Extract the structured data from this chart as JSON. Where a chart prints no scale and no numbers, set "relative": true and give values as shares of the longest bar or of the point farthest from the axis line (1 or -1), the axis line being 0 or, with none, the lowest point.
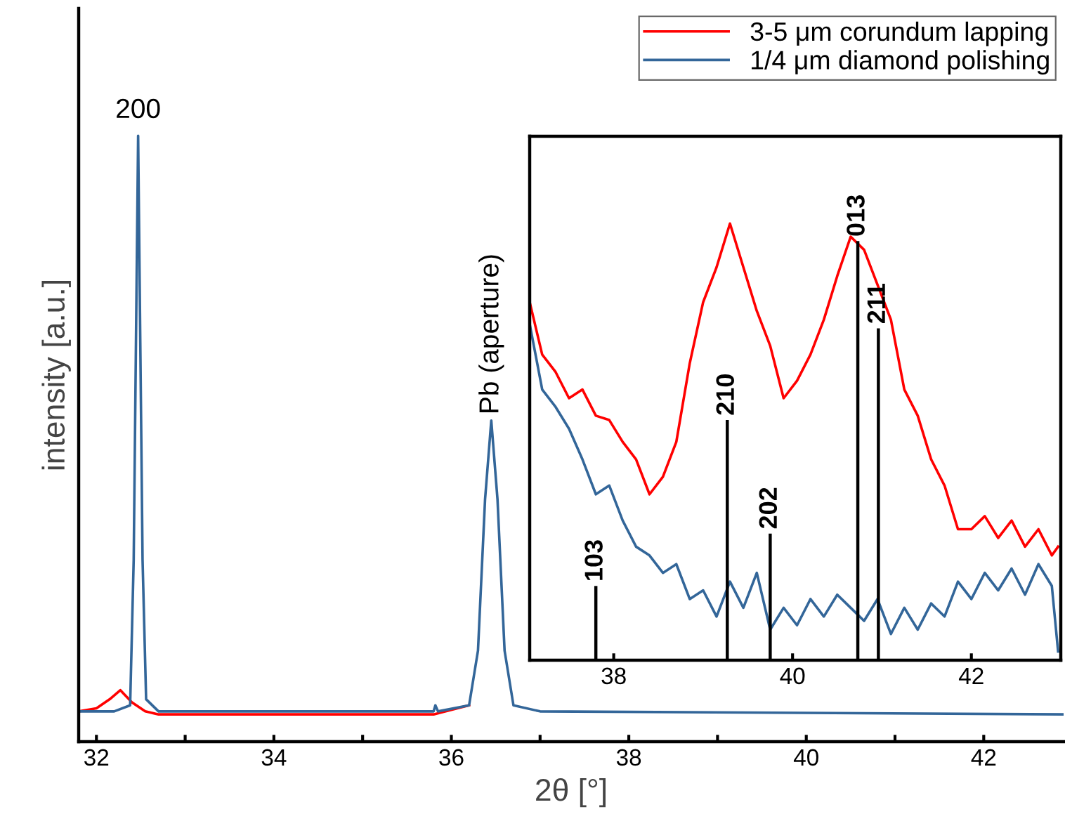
{
  "chart_data": [
    {
      "type": "line",
      "relative": true,
      "xlabel": "2θ [°]",
      "ylabel": "intensity [a.u.]",
      "xlim": [
        31.8,
        42.9
      ],
      "xticks": [
        32,
        {
          "value": 33,
          "label": null
        },
        34,
        {
          "value": 35,
          "label": null
        },
        36,
        {
          "value": 37,
          "label": null
        },
        38,
        {
          "value": 39,
          "label": null
        },
        40,
        {
          "value": 41,
          "label": null
        },
        42
      ],
      "legend": "top right",
      "series": [
        {
          "name": "3-5 μm corundum lapping",
          "color": "#ff0000",
          "x": [
            31.8,
            32.0,
            32.15,
            32.27,
            32.4,
            32.55,
            32.7,
            35.8,
            36.2
          ],
          "values": [
            0.05,
            0.055,
            0.07,
            0.085,
            0.065,
            0.05,
            0.045,
            0.045,
            0.06
          ]
        },
        {
          "name": "1/4 μm diamond polishing",
          "color": "#336699",
          "x": [
            31.8,
            32.2,
            32.38,
            32.42,
            32.47,
            32.52,
            32.56,
            32.7,
            35.8,
            35.82,
            35.85,
            36.2,
            36.3,
            36.38,
            36.45,
            36.52,
            36.6,
            36.7,
            37.0,
            42.9
          ],
          "values": [
            0.05,
            0.05,
            0.06,
            0.3,
            1.0,
            0.3,
            0.07,
            0.05,
            0.05,
            0.06,
            0.05,
            0.06,
            0.15,
            0.4,
            0.53,
            0.4,
            0.15,
            0.06,
            0.05,
            0.045
          ]
        }
      ],
      "annotations": [
        {
          "text": "200",
          "x": 32.47,
          "y": 1.0
        },
        {
          "text": "Pb (aperture)",
          "x": 36.45,
          "y": 0.53
        }
      ]
    },
    {
      "type": "line",
      "relative": true,
      "xlim": [
        37.06,
        43.0
      ],
      "xticks": [
        38,
        40,
        42
      ],
      "series": [
        {
          "color": "#ff0000",
          "x": [
            37.06,
            37.2,
            37.35,
            37.5,
            37.65,
            37.8,
            37.95,
            38.1,
            38.25,
            38.4,
            38.55,
            38.7,
            38.85,
            39.0,
            39.15,
            39.3,
            39.45,
            39.6,
            39.75,
            39.9,
            40.05,
            40.2,
            40.35,
            40.5,
            40.65,
            40.8,
            40.95,
            41.1,
            41.25,
            41.4,
            41.55,
            41.7,
            41.85,
            42.0,
            42.15,
            42.3,
            42.45,
            42.6,
            42.75,
            42.9,
            42.97
          ],
          "values": [
            0.82,
            0.7,
            0.66,
            0.6,
            0.62,
            0.56,
            0.55,
            0.5,
            0.46,
            0.38,
            0.42,
            0.5,
            0.68,
            0.82,
            0.9,
            1.0,
            0.9,
            0.8,
            0.72,
            0.6,
            0.64,
            0.7,
            0.78,
            0.88,
            0.97,
            0.94,
            0.86,
            0.78,
            0.62,
            0.56,
            0.46,
            0.4,
            0.3,
            0.3,
            0.33,
            0.28,
            0.32,
            0.26,
            0.3,
            0.24,
            0.26
          ]
        },
        {
          "color": "#336699",
          "x": [
            37.06,
            37.2,
            37.35,
            37.5,
            37.65,
            37.8,
            37.95,
            38.1,
            38.25,
            38.4,
            38.55,
            38.7,
            38.85,
            39.0,
            39.15,
            39.3,
            39.45,
            39.6,
            39.75,
            39.9,
            40.05,
            40.2,
            40.35,
            40.5,
            40.65,
            40.8,
            40.95,
            41.1,
            41.25,
            41.4,
            41.55,
            41.7,
            41.85,
            42.0,
            42.15,
            42.3,
            42.45,
            42.6,
            42.75,
            42.9,
            42.97
          ],
          "values": [
            0.77,
            0.62,
            0.58,
            0.53,
            0.46,
            0.38,
            0.4,
            0.32,
            0.26,
            0.24,
            0.2,
            0.22,
            0.14,
            0.16,
            0.1,
            0.18,
            0.12,
            0.2,
            0.07,
            0.12,
            0.08,
            0.14,
            0.1,
            0.15,
            0.12,
            0.09,
            0.14,
            0.06,
            0.12,
            0.07,
            0.13,
            0.1,
            0.18,
            0.14,
            0.2,
            0.16,
            0.21,
            0.15,
            0.22,
            0.17,
            0.02
          ]
        },
        {
          "type": "bar",
          "name": "103",
          "color": "#000000",
          "x": [
            37.8
          ],
          "values": [
            0.17
          ]
        },
        {
          "type": "bar",
          "name": "210",
          "color": "#000000",
          "x": [
            39.27
          ],
          "values": [
            0.55
          ]
        },
        {
          "type": "bar",
          "name": "202",
          "color": "#000000",
          "x": [
            39.75
          ],
          "values": [
            0.29
          ]
        },
        {
          "type": "bar",
          "name": "013",
          "color": "#000000",
          "x": [
            40.73
          ],
          "values": [
            0.96
          ]
        },
        {
          "type": "bar",
          "name": "211",
          "color": "#000000",
          "x": [
            40.96
          ],
          "values": [
            0.76
          ]
        }
      ]
    }
  ]
}
